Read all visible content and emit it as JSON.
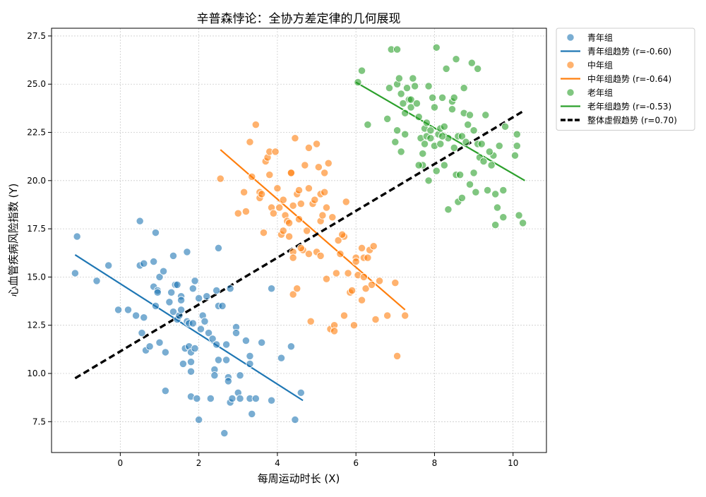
{
  "chart_data": {
    "type": "scatter",
    "title": "辛普森悖论：全协方差定律的几何展现",
    "xlabel": "每周运动时长 (X)",
    "ylabel": "心血管疾病风险指数 (Y)",
    "xlim": [
      -1.75,
      10.85
    ],
    "ylim": [
      5.9,
      27.9
    ],
    "xticks": [
      0,
      2,
      4,
      6,
      8,
      10
    ],
    "yticks": [
      7.5,
      10.0,
      12.5,
      15.0,
      17.5,
      20.0,
      22.5,
      25.0,
      27.5
    ],
    "xtick_labels": [
      "0",
      "2",
      "4",
      "6",
      "8",
      "10"
    ],
    "ytick_labels": [
      "7.5",
      "10.0",
      "12.5",
      "15.0",
      "17.5",
      "20.0",
      "22.5",
      "25.0",
      "27.5"
    ],
    "grid": true,
    "legend_position": "outside-top-right",
    "groups": [
      {
        "name": "青年组",
        "color": "#1f77b4",
        "trend_label": "青年组趋势 (r=-0.60)",
        "trend": [
          [
            -1.15,
            16.15
          ],
          [
            4.65,
            8.6
          ]
        ],
        "points": [
          [
            -1.1,
            17.1
          ],
          [
            -1.15,
            15.2
          ],
          [
            -0.6,
            14.8
          ],
          [
            -0.3,
            15.6
          ],
          [
            -0.05,
            13.3
          ],
          [
            0.2,
            13.3
          ],
          [
            0.4,
            13.0
          ],
          [
            0.5,
            17.9
          ],
          [
            0.5,
            15.6
          ],
          [
            0.6,
            15.7
          ],
          [
            0.55,
            12.1
          ],
          [
            0.6,
            12.9
          ],
          [
            0.65,
            11.2
          ],
          [
            0.75,
            11.4
          ],
          [
            0.85,
            15.8
          ],
          [
            0.85,
            14.5
          ],
          [
            0.9,
            17.3
          ],
          [
            0.9,
            13.5
          ],
          [
            0.95,
            14.3
          ],
          [
            0.95,
            14.2
          ],
          [
            1.0,
            15.0
          ],
          [
            1.0,
            11.6
          ],
          [
            1.1,
            15.3
          ],
          [
            1.15,
            9.1
          ],
          [
            1.15,
            11.1
          ],
          [
            1.25,
            13.7
          ],
          [
            1.3,
            14.2
          ],
          [
            1.35,
            16.1
          ],
          [
            1.35,
            13.2
          ],
          [
            1.4,
            14.6
          ],
          [
            1.45,
            14.6
          ],
          [
            1.45,
            12.8
          ],
          [
            1.5,
            13.0
          ],
          [
            1.55,
            14.0
          ],
          [
            1.55,
            13.3
          ],
          [
            1.6,
            10.5
          ],
          [
            1.65,
            11.3
          ],
          [
            1.7,
            16.3
          ],
          [
            1.7,
            12.7
          ],
          [
            1.75,
            11.4
          ],
          [
            1.75,
            12.6
          ],
          [
            1.8,
            11.1
          ],
          [
            1.8,
            10.1
          ],
          [
            1.8,
            10.6
          ],
          [
            1.8,
            8.8
          ],
          [
            1.85,
            14.4
          ],
          [
            1.85,
            12.6
          ],
          [
            1.9,
            14.8
          ],
          [
            1.9,
            11.3
          ],
          [
            1.95,
            8.7
          ],
          [
            2.0,
            13.9
          ],
          [
            2.0,
            7.6
          ],
          [
            2.05,
            12.3
          ],
          [
            2.1,
            13.0
          ],
          [
            2.15,
            12.7
          ],
          [
            2.2,
            14.0
          ],
          [
            2.25,
            12.1
          ],
          [
            2.3,
            8.7
          ],
          [
            2.35,
            11.8
          ],
          [
            2.4,
            10.2
          ],
          [
            2.4,
            9.9
          ],
          [
            2.45,
            14.3
          ],
          [
            2.45,
            11.5
          ],
          [
            2.5,
            16.5
          ],
          [
            2.5,
            13.5
          ],
          [
            2.5,
            10.7
          ],
          [
            2.6,
            13.5
          ],
          [
            2.65,
            6.9
          ],
          [
            2.7,
            11.5
          ],
          [
            2.7,
            10.7
          ],
          [
            2.75,
            9.8
          ],
          [
            2.8,
            14.4
          ],
          [
            2.8,
            8.5
          ],
          [
            2.85,
            8.7
          ],
          [
            2.95,
            12.4
          ],
          [
            2.95,
            12.1
          ],
          [
            3.0,
            9.0
          ],
          [
            3.05,
            8.7
          ],
          [
            3.05,
            9.9
          ],
          [
            3.2,
            11.7
          ],
          [
            3.3,
            10.9
          ],
          [
            3.3,
            10.5
          ],
          [
            3.3,
            8.7
          ],
          [
            3.35,
            7.9
          ],
          [
            3.45,
            8.7
          ],
          [
            3.6,
            11.6
          ],
          [
            3.85,
            14.4
          ],
          [
            3.85,
            8.6
          ],
          [
            4.1,
            10.8
          ],
          [
            4.35,
            11.4
          ],
          [
            4.45,
            7.6
          ],
          [
            4.6,
            9.0
          ],
          [
            2.75,
            9.6
          ],
          [
            1.55,
            13.8
          ]
        ]
      },
      {
        "name": "中年组",
        "color": "#ff7f0e",
        "trend_label": "中年组趋势 (r=-0.64)",
        "trend": [
          [
            2.55,
            21.6
          ],
          [
            7.25,
            13.3
          ]
        ],
        "points": [
          [
            2.55,
            20.1
          ],
          [
            3.0,
            18.3
          ],
          [
            3.15,
            19.4
          ],
          [
            3.2,
            18.4
          ],
          [
            3.3,
            22.0
          ],
          [
            3.35,
            20.2
          ],
          [
            3.45,
            22.9
          ],
          [
            3.55,
            19.4
          ],
          [
            3.55,
            19.1
          ],
          [
            3.65,
            17.3
          ],
          [
            3.7,
            21.0
          ],
          [
            3.75,
            21.2
          ],
          [
            3.8,
            21.5
          ],
          [
            3.8,
            20.3
          ],
          [
            3.85,
            18.6
          ],
          [
            3.9,
            18.3
          ],
          [
            3.95,
            21.5
          ],
          [
            4.0,
            19.6
          ],
          [
            4.05,
            18.6
          ],
          [
            4.1,
            17.2
          ],
          [
            4.15,
            17.4
          ],
          [
            4.15,
            19.0
          ],
          [
            4.2,
            18.2
          ],
          [
            4.25,
            17.9
          ],
          [
            4.3,
            17.8
          ],
          [
            4.3,
            17.1
          ],
          [
            4.35,
            20.4
          ],
          [
            4.35,
            20.4
          ],
          [
            4.4,
            18.7
          ],
          [
            4.4,
            16.3
          ],
          [
            4.4,
            16.0
          ],
          [
            4.4,
            14.1
          ],
          [
            4.45,
            22.2
          ],
          [
            4.5,
            19.3
          ],
          [
            4.5,
            14.4
          ],
          [
            4.55,
            19.5
          ],
          [
            4.55,
            18.0
          ],
          [
            4.6,
            18.8
          ],
          [
            4.65,
            16.4
          ],
          [
            4.7,
            20.8
          ],
          [
            4.75,
            17.4
          ],
          [
            4.8,
            21.7
          ],
          [
            4.8,
            19.6
          ],
          [
            4.8,
            16.2
          ],
          [
            4.85,
            12.7
          ],
          [
            4.9,
            18.8
          ],
          [
            4.95,
            19.0
          ],
          [
            5.0,
            21.9
          ],
          [
            5.0,
            16.3
          ],
          [
            5.05,
            20.7
          ],
          [
            5.1,
            17.9
          ],
          [
            5.1,
            16.1
          ],
          [
            5.1,
            19.3
          ],
          [
            5.15,
            18.2
          ],
          [
            5.2,
            20.4
          ],
          [
            5.2,
            19.4
          ],
          [
            5.25,
            14.9
          ],
          [
            5.3,
            20.9
          ],
          [
            5.35,
            12.3
          ],
          [
            5.4,
            18.1
          ],
          [
            5.45,
            12.5
          ],
          [
            5.45,
            12.2
          ],
          [
            5.5,
            15.2
          ],
          [
            5.55,
            16.9
          ],
          [
            5.6,
            16.2
          ],
          [
            5.7,
            17.1
          ],
          [
            5.7,
            13.0
          ],
          [
            5.75,
            18.9
          ],
          [
            5.8,
            15.2
          ],
          [
            5.85,
            14.2
          ],
          [
            5.9,
            14.3
          ],
          [
            5.95,
            12.5
          ],
          [
            6.0,
            16.0
          ],
          [
            6.05,
            15.1
          ],
          [
            6.15,
            16.5
          ],
          [
            6.15,
            13.8
          ],
          [
            6.2,
            16.0
          ],
          [
            6.2,
            15.0
          ],
          [
            6.25,
            14.4
          ],
          [
            6.3,
            16.0
          ],
          [
            6.35,
            16.4
          ],
          [
            6.4,
            14.6
          ],
          [
            6.45,
            16.6
          ],
          [
            6.5,
            12.8
          ],
          [
            6.6,
            14.8
          ],
          [
            6.8,
            13.0
          ],
          [
            7.0,
            14.7
          ],
          [
            7.05,
            10.9
          ],
          [
            7.25,
            13.0
          ],
          [
            5.65,
            17.2
          ],
          [
            4.6,
            16.5
          ],
          [
            3.6,
            19.3
          ],
          [
            5.25,
            18.6
          ],
          [
            6.0,
            15.8
          ]
        ]
      },
      {
        "name": "老年组",
        "color": "#2ca02c",
        "trend_label": "老年组趋势 (r=-0.53)",
        "trend": [
          [
            6.0,
            25.1
          ],
          [
            10.3,
            20.0
          ]
        ],
        "points": [
          [
            6.05,
            25.1
          ],
          [
            6.15,
            25.7
          ],
          [
            6.3,
            22.9
          ],
          [
            6.8,
            23.2
          ],
          [
            6.85,
            24.8
          ],
          [
            6.9,
            26.8
          ],
          [
            7.0,
            22.0
          ],
          [
            7.05,
            26.8
          ],
          [
            7.05,
            25.0
          ],
          [
            7.05,
            22.6
          ],
          [
            7.1,
            25.3
          ],
          [
            7.15,
            21.5
          ],
          [
            7.15,
            24.5
          ],
          [
            7.25,
            23.5
          ],
          [
            7.25,
            22.4
          ],
          [
            7.3,
            24.8
          ],
          [
            7.35,
            24.2
          ],
          [
            7.4,
            24.2
          ],
          [
            7.4,
            23.8
          ],
          [
            7.45,
            25.3
          ],
          [
            7.5,
            24.9
          ],
          [
            7.55,
            24.0
          ],
          [
            7.6,
            23.3
          ],
          [
            7.65,
            22.2
          ],
          [
            7.7,
            20.8
          ],
          [
            7.7,
            21.4
          ],
          [
            7.75,
            22.7
          ],
          [
            7.75,
            21.9
          ],
          [
            7.8,
            23.0
          ],
          [
            7.8,
            22.3
          ],
          [
            7.85,
            24.9
          ],
          [
            7.85,
            20.0
          ],
          [
            7.9,
            22.6
          ],
          [
            7.9,
            22.2
          ],
          [
            7.95,
            24.3
          ],
          [
            8.0,
            23.8
          ],
          [
            8.0,
            21.8
          ],
          [
            8.05,
            26.9
          ],
          [
            8.1,
            22.4
          ],
          [
            8.15,
            22.7
          ],
          [
            8.15,
            21.9
          ],
          [
            8.2,
            24.3
          ],
          [
            8.25,
            22.8
          ],
          [
            8.25,
            20.8
          ],
          [
            8.3,
            25.8
          ],
          [
            8.35,
            22.2
          ],
          [
            8.35,
            18.5
          ],
          [
            8.45,
            24.1
          ],
          [
            8.45,
            23.7
          ],
          [
            8.5,
            24.3
          ],
          [
            8.5,
            21.7
          ],
          [
            8.55,
            26.3
          ],
          [
            8.55,
            20.3
          ],
          [
            8.6,
            22.3
          ],
          [
            8.6,
            18.9
          ],
          [
            8.65,
            20.3
          ],
          [
            8.7,
            22.3
          ],
          [
            8.7,
            19.1
          ],
          [
            8.75,
            24.8
          ],
          [
            8.75,
            23.5
          ],
          [
            8.8,
            22.0
          ],
          [
            8.85,
            22.9
          ],
          [
            8.9,
            19.8
          ],
          [
            8.9,
            23.4
          ],
          [
            8.95,
            26.1
          ],
          [
            9.0,
            22.6
          ],
          [
            9.05,
            19.4
          ],
          [
            9.1,
            25.8
          ],
          [
            9.1,
            21.9
          ],
          [
            9.15,
            21.2
          ],
          [
            9.2,
            21.9
          ],
          [
            9.25,
            21.0
          ],
          [
            9.3,
            23.4
          ],
          [
            9.35,
            19.5
          ],
          [
            9.45,
            20.8
          ],
          [
            9.5,
            21.3
          ],
          [
            9.55,
            19.3
          ],
          [
            9.55,
            17.7
          ],
          [
            9.6,
            18.6
          ],
          [
            9.65,
            21.8
          ],
          [
            9.75,
            18.1
          ],
          [
            9.75,
            19.5
          ],
          [
            9.8,
            22.8
          ],
          [
            10.05,
            21.3
          ],
          [
            10.1,
            22.4
          ],
          [
            10.1,
            21.8
          ],
          [
            10.15,
            18.2
          ],
          [
            10.25,
            17.8
          ],
          [
            8.05,
            20.5
          ],
          [
            7.6,
            20.8
          ],
          [
            9.0,
            20.4
          ],
          [
            8.2,
            22.3
          ],
          [
            7.2,
            24.0
          ],
          [
            9.4,
            21.5
          ]
        ]
      }
    ],
    "overall": {
      "label": "整体虚假趋势 (r=0.70)",
      "color": "#000000",
      "trend": [
        [
          -1.15,
          9.75
        ],
        [
          10.3,
          23.65
        ]
      ]
    }
  }
}
